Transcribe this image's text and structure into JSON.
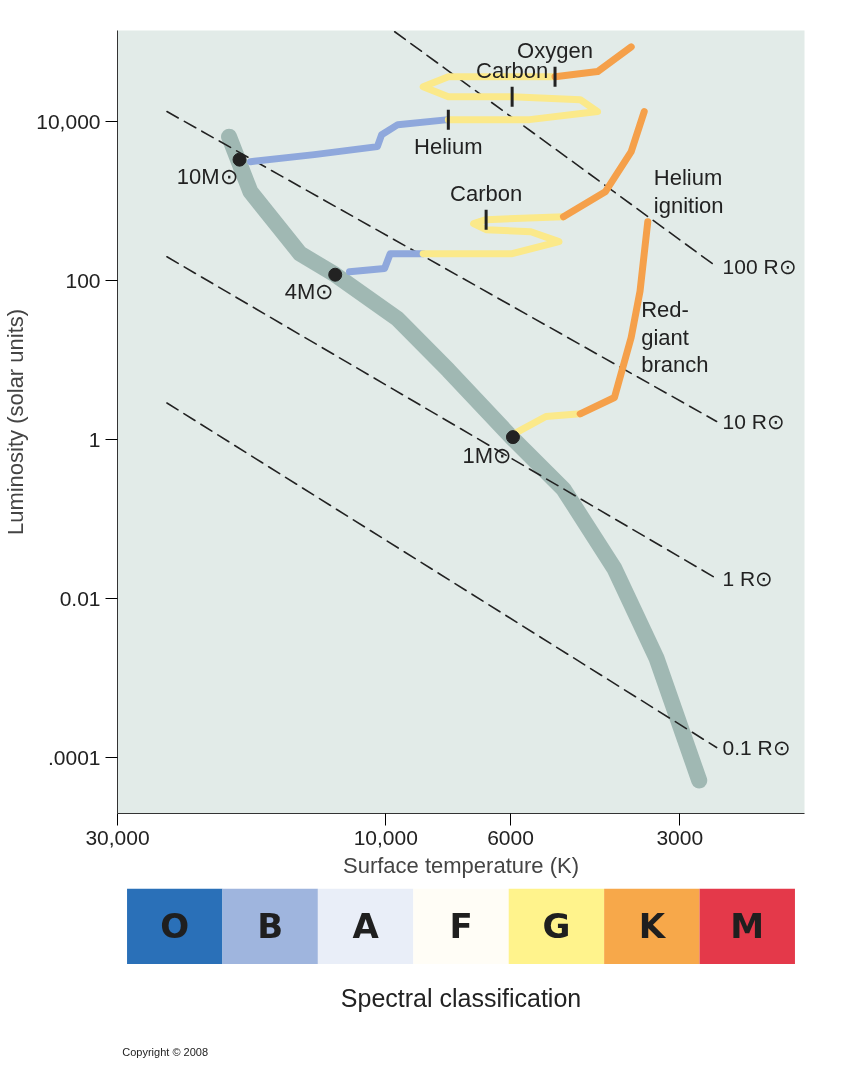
{
  "chart_data": [
    {
      "type": "line",
      "xlabel": "Surface temperature (K)",
      "ylabel": "Luminosity (solar units)",
      "log": "xy",
      "xlim": [
        30000,
        1800
      ],
      "ylim": [
        2e-05,
        140000
      ],
      "xticks": [
        {
          "value": 30000,
          "label": "30,000"
        },
        {
          "value": 10000,
          "label": "10,000"
        },
        6000,
        3000
      ],
      "yticks": [
        {
          "value": 10000,
          "label": "10,000"
        },
        100,
        1,
        0.01,
        {
          "value": 0.0001,
          "label": ".0001"
        }
      ],
      "grid": false,
      "series": [
        {
          "color": "#8aa7a1",
          "x": [
            19000,
            17400,
            14200,
            12300,
            9520,
            7740,
            5980,
            4830,
            3920,
            3300,
            2770
          ],
          "values": [
            6470,
            1310,
            219,
            119,
            33,
            7.5,
            1.08,
            0.24,
            0.024,
            0.0018,
            5.2e-05
          ]
        },
        {
          "name": "100 R⊙",
          "color": "#222222",
          "line_style": "dashed",
          "x": [
            9640,
            2580
          ],
          "values": [
            135000,
            150
          ]
        },
        {
          "name": "10 R⊙",
          "color": "#222222",
          "line_style": "dashed",
          "x": [
            24500,
            2580
          ],
          "values": [
            13400,
            1.7
          ]
        },
        {
          "name": "1 R⊙",
          "color": "#222222",
          "line_style": "dashed",
          "x": [
            24500,
            2580
          ],
          "values": [
            200,
            0.018
          ]
        },
        {
          "name": "0.1 R⊙",
          "color": "#222222",
          "line_style": "dashed",
          "x": [
            24500,
            2580
          ],
          "values": [
            2.9,
            0.000135
          ]
        },
        {
          "color": "#8fa8dc",
          "x": [
            17400,
            13400,
            10350,
            10170,
            9520,
            7740
          ],
          "values": [
            3140,
            3850,
            4850,
            6860,
            9170,
            10600
          ]
        },
        {
          "color": "#fbe98a",
          "x": [
            7740,
            5550,
            4200,
            4510,
            5960,
            7740,
            8580,
            7740,
            5000
          ],
          "values": [
            10600,
            10600,
            13400,
            18900,
            20600,
            20600,
            27500,
            36800,
            36800
          ]
        },
        {
          "color": "#f5a04a",
          "x": [
            5000,
            4200,
            3660
          ],
          "values": [
            36800,
            42600,
            87000
          ]
        },
        {
          "color": "#8fa8dc",
          "x": [
            11600,
            10050,
            9820,
            8580
          ],
          "values": [
            130,
            142,
            219,
            219
          ]
        },
        {
          "color": "#fbe98a",
          "x": [
            8580,
            5960,
            4920,
            5520,
            6630,
            6980,
            6630,
            4830
          ],
          "values": [
            219,
            219,
            310,
            413,
            438,
            521,
            585,
            638
          ]
        },
        {
          "color": "#f5a04a",
          "x": [
            4830,
            4070,
            3660,
            3470
          ],
          "values": [
            638,
            1310,
            4200,
            13400
          ]
        },
        {
          "color": "#fbe98a",
          "x": [
            5850,
            5190,
            4510
          ],
          "values": [
            1.24,
            1.96,
            2.12
          ]
        },
        {
          "color": "#f5a04a",
          "x": [
            4510,
            3920,
            3660,
            3530,
            3420
          ],
          "values": [
            2.12,
            3.4,
            19.4,
            74,
            550
          ]
        },
        {
          "type": "scatter",
          "marker": "circle",
          "color": "#222222",
          "x": [
            18200,
            12300,
            5940
          ],
          "values": [
            3330,
            119,
            1.08
          ]
        }
      ],
      "annotations": [
        {
          "text": "10M⊙",
          "x": 18200,
          "y": 3330
        },
        {
          "text": "4M⊙",
          "x": 12300,
          "y": 119
        },
        {
          "text": "1M⊙",
          "x": 5940,
          "y": 1.08
        },
        {
          "text": "Helium",
          "x": 7740,
          "y": 10600
        },
        {
          "text": "Carbon",
          "x": 5960,
          "y": 20600
        },
        {
          "text": "Oxygen",
          "x": 5000,
          "y": 36800
        },
        {
          "text": "Carbon",
          "x": 6630,
          "y": 585
        },
        {
          "text": "Helium\nignition",
          "x": 3420,
          "y": 550
        },
        {
          "text": "Red-\ngiant\nbranch",
          "x": 3660,
          "y": 19.4
        }
      ]
    },
    {
      "type": "other",
      "xlabel": "Spectral classification",
      "categories": [
        "O",
        "B",
        "A",
        "F",
        "G",
        "K",
        "M"
      ],
      "colors": [
        "#2a70b8",
        "#9fb5de",
        "#e9eef8",
        "#fffdf6",
        "#fff38c",
        "#f7a84a",
        "#e4394a"
      ],
      "annotations": [
        "Copyright © 2008"
      ]
    }
  ]
}
